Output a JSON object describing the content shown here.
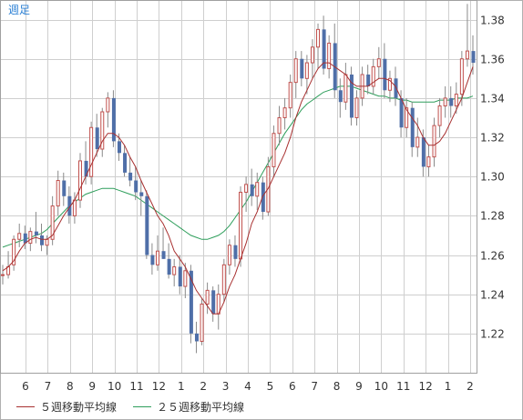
{
  "chart_data": {
    "type": "candlestick",
    "timeframe_label": "週足",
    "x_tick_labels": [
      "6",
      "7",
      "8",
      "9",
      "10",
      "11",
      "12",
      "1",
      "2",
      "3",
      "4",
      "5",
      "6",
      "7",
      "8",
      "9",
      "10",
      "11",
      "12",
      "1",
      "2"
    ],
    "y_tick_labels": [
      "1.22",
      "1.24",
      "1.26",
      "1.28",
      "1.30",
      "1.32",
      "1.34",
      "1.36",
      "1.38"
    ],
    "y_ticks": [
      1.22,
      1.24,
      1.26,
      1.28,
      1.3,
      1.32,
      1.34,
      1.36,
      1.38
    ],
    "ylim": [
      1.2,
      1.39
    ],
    "grid": true,
    "legend_position": "bottom-left",
    "legend": [
      {
        "label": "５週移動平均線",
        "color": "#a83030"
      },
      {
        "label": "２５週移動平均線",
        "color": "#2e9e5b"
      }
    ],
    "colors": {
      "up_candle_border": "#c0504d",
      "up_candle_fill": "#ffffff",
      "down_candle": "#4f6fa8",
      "wick": "#8a8a8a",
      "ma5": "#a83030",
      "ma25": "#2e9e5b",
      "grid": "#cfcfcf",
      "frame": "#a0a0a0"
    },
    "ohlc": [
      [
        1.25,
        1.255,
        1.245,
        1.25
      ],
      [
        1.25,
        1.262,
        1.248,
        1.254
      ],
      [
        1.255,
        1.27,
        1.252,
        1.268
      ],
      [
        1.268,
        1.276,
        1.264,
        1.271
      ],
      [
        1.271,
        1.275,
        1.263,
        1.266
      ],
      [
        1.266,
        1.274,
        1.262,
        1.272
      ],
      [
        1.272,
        1.282,
        1.266,
        1.27
      ],
      [
        1.27,
        1.276,
        1.262,
        1.265
      ],
      [
        1.265,
        1.27,
        1.26,
        1.268
      ],
      [
        1.268,
        1.29,
        1.265,
        1.285
      ],
      [
        1.285,
        1.303,
        1.28,
        1.298
      ],
      [
        1.298,
        1.302,
        1.285,
        1.29
      ],
      [
        1.29,
        1.295,
        1.276,
        1.28
      ],
      [
        1.28,
        1.292,
        1.276,
        1.288
      ],
      [
        1.288,
        1.312,
        1.284,
        1.308
      ],
      [
        1.308,
        1.318,
        1.296,
        1.3
      ],
      [
        1.3,
        1.328,
        1.296,
        1.325
      ],
      [
        1.325,
        1.332,
        1.31,
        1.314
      ],
      [
        1.314,
        1.335,
        1.31,
        1.333
      ],
      [
        1.333,
        1.343,
        1.325,
        1.34
      ],
      [
        1.34,
        1.344,
        1.315,
        1.318
      ],
      [
        1.318,
        1.322,
        1.308,
        1.312
      ],
      [
        1.312,
        1.316,
        1.3,
        1.302
      ],
      [
        1.302,
        1.31,
        1.295,
        1.298
      ],
      [
        1.298,
        1.305,
        1.288,
        1.292
      ],
      [
        1.292,
        1.298,
        1.28,
        1.29
      ],
      [
        1.29,
        1.293,
        1.258,
        1.26
      ],
      [
        1.26,
        1.266,
        1.25,
        1.255
      ],
      [
        1.255,
        1.27,
        1.252,
        1.262
      ],
      [
        1.262,
        1.274,
        1.258,
        1.258
      ],
      [
        1.258,
        1.266,
        1.248,
        1.25
      ],
      [
        1.25,
        1.258,
        1.244,
        1.254
      ],
      [
        1.254,
        1.26,
        1.24,
        1.244
      ],
      [
        1.244,
        1.256,
        1.238,
        1.252
      ],
      [
        1.252,
        1.255,
        1.215,
        1.22
      ],
      [
        1.22,
        1.226,
        1.21,
        1.216
      ],
      [
        1.216,
        1.238,
        1.214,
        1.235
      ],
      [
        1.235,
        1.246,
        1.23,
        1.242
      ],
      [
        1.242,
        1.244,
        1.226,
        1.23
      ],
      [
        1.23,
        1.245,
        1.222,
        1.24
      ],
      [
        1.24,
        1.258,
        1.236,
        1.255
      ],
      [
        1.255,
        1.268,
        1.25,
        1.265
      ],
      [
        1.265,
        1.27,
        1.254,
        1.258
      ],
      [
        1.258,
        1.295,
        1.254,
        1.292
      ],
      [
        1.292,
        1.3,
        1.282,
        1.296
      ],
      [
        1.296,
        1.304,
        1.285,
        1.29
      ],
      [
        1.29,
        1.302,
        1.283,
        1.297
      ],
      [
        1.297,
        1.3,
        1.278,
        1.282
      ],
      [
        1.282,
        1.31,
        1.28,
        1.305
      ],
      [
        1.305,
        1.326,
        1.3,
        1.322
      ],
      [
        1.322,
        1.336,
        1.316,
        1.33
      ],
      [
        1.33,
        1.34,
        1.324,
        1.335
      ],
      [
        1.335,
        1.352,
        1.33,
        1.348
      ],
      [
        1.348,
        1.364,
        1.34,
        1.36
      ],
      [
        1.36,
        1.364,
        1.346,
        1.35
      ],
      [
        1.35,
        1.362,
        1.342,
        1.358
      ],
      [
        1.358,
        1.37,
        1.35,
        1.366
      ],
      [
        1.366,
        1.378,
        1.355,
        1.375
      ],
      [
        1.375,
        1.382,
        1.352,
        1.355
      ],
      [
        1.355,
        1.372,
        1.35,
        1.368
      ],
      [
        1.368,
        1.378,
        1.34,
        1.344
      ],
      [
        1.344,
        1.35,
        1.33,
        1.338
      ],
      [
        1.338,
        1.358,
        1.334,
        1.352
      ],
      [
        1.352,
        1.356,
        1.326,
        1.33
      ],
      [
        1.33,
        1.344,
        1.326,
        1.34
      ],
      [
        1.34,
        1.356,
        1.336,
        1.352
      ],
      [
        1.352,
        1.357,
        1.342,
        1.346
      ],
      [
        1.346,
        1.36,
        1.342,
        1.356
      ],
      [
        1.356,
        1.366,
        1.35,
        1.36
      ],
      [
        1.36,
        1.368,
        1.34,
        1.344
      ],
      [
        1.344,
        1.354,
        1.338,
        1.35
      ],
      [
        1.35,
        1.356,
        1.336,
        1.34
      ],
      [
        1.34,
        1.344,
        1.32,
        1.325
      ],
      [
        1.325,
        1.34,
        1.32,
        1.335
      ],
      [
        1.335,
        1.338,
        1.31,
        1.315
      ],
      [
        1.315,
        1.33,
        1.31,
        1.32
      ],
      [
        1.32,
        1.324,
        1.3,
        1.305
      ],
      [
        1.305,
        1.316,
        1.3,
        1.31
      ],
      [
        1.31,
        1.33,
        1.305,
        1.326
      ],
      [
        1.326,
        1.34,
        1.32,
        1.336
      ],
      [
        1.336,
        1.346,
        1.33,
        1.34
      ],
      [
        1.34,
        1.346,
        1.33,
        1.336
      ],
      [
        1.336,
        1.348,
        1.332,
        1.342
      ],
      [
        1.342,
        1.364,
        1.336,
        1.36
      ],
      [
        1.36,
        1.388,
        1.356,
        1.364
      ],
      [
        1.364,
        1.372,
        1.352,
        1.358
      ]
    ],
    "ma5": [
      1.252,
      1.254,
      1.257,
      1.262,
      1.266,
      1.268,
      1.269,
      1.268,
      1.268,
      1.27,
      1.275,
      1.28,
      1.284,
      1.288,
      1.294,
      1.3,
      1.306,
      1.312,
      1.318,
      1.322,
      1.322,
      1.32,
      1.316,
      1.31,
      1.305,
      1.298,
      1.292,
      1.286,
      1.28,
      1.276,
      1.27,
      1.262,
      1.258,
      1.254,
      1.248,
      1.242,
      1.238,
      1.234,
      1.23,
      1.23,
      1.236,
      1.244,
      1.25,
      1.258,
      1.266,
      1.276,
      1.282,
      1.29,
      1.294,
      1.3,
      1.306,
      1.312,
      1.32,
      1.33,
      1.338,
      1.344,
      1.35,
      1.355,
      1.358,
      1.358,
      1.356,
      1.354,
      1.352,
      1.348,
      1.346,
      1.346,
      1.346,
      1.348,
      1.35,
      1.35,
      1.349,
      1.346,
      1.34,
      1.334,
      1.33,
      1.326,
      1.32,
      1.316,
      1.316,
      1.318,
      1.322,
      1.328,
      1.334,
      1.34,
      1.348,
      1.356
    ],
    "ma25": [
      1.264,
      1.265,
      1.266,
      1.267,
      1.268,
      1.269,
      1.27,
      1.271,
      1.273,
      1.276,
      1.279,
      1.282,
      1.285,
      1.287,
      1.289,
      1.291,
      1.292,
      1.293,
      1.294,
      1.294,
      1.294,
      1.293,
      1.292,
      1.291,
      1.29,
      1.288,
      1.286,
      1.284,
      1.282,
      1.28,
      1.278,
      1.276,
      1.274,
      1.272,
      1.27,
      1.269,
      1.268,
      1.268,
      1.269,
      1.27,
      1.272,
      1.275,
      1.279,
      1.283,
      1.287,
      1.292,
      1.297,
      1.302,
      1.307,
      1.312,
      1.317,
      1.322,
      1.326,
      1.33,
      1.334,
      1.337,
      1.339,
      1.341,
      1.343,
      1.344,
      1.345,
      1.346,
      1.346,
      1.346,
      1.345,
      1.344,
      1.343,
      1.342,
      1.341,
      1.341,
      1.34,
      1.34,
      1.339,
      1.339,
      1.338,
      1.338,
      1.338,
      1.338,
      1.338,
      1.339,
      1.339,
      1.339,
      1.34,
      1.34,
      1.34,
      1.341
    ]
  }
}
